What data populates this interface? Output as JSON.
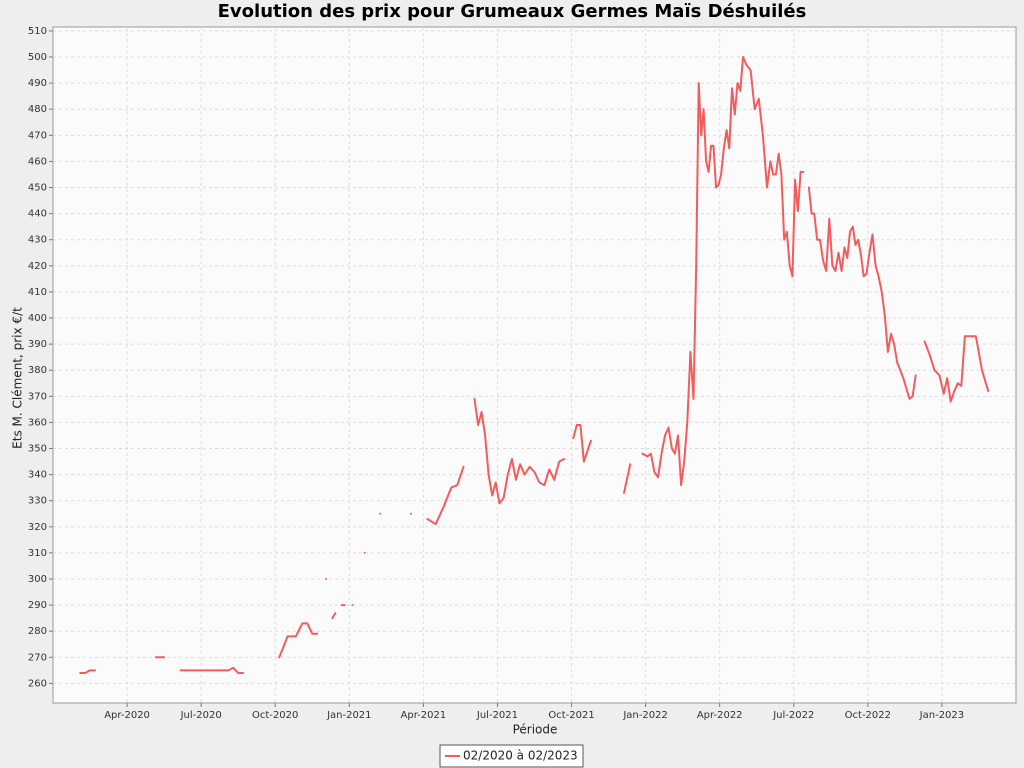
{
  "chart_data": {
    "type": "line",
    "title": "Evolution des prix pour Grumeaux Germes Maïs Déshuilés",
    "x_label": "Période",
    "y_label": "Ets M. Clément, prix €/t",
    "x": [
      "2020-02",
      "2020-02",
      "2020-02",
      "2020-02",
      "2020-02",
      "2020-05",
      "2020-05",
      "2020-05",
      "2020-06",
      "2020-06",
      "2020-06",
      "2020-07",
      "2020-07",
      "2020-07",
      "2020-07",
      "2020-08",
      "2020-08",
      "2020-08",
      "2020-08",
      "2020-08",
      "2020-10",
      "2020-10",
      "2020-10",
      "2020-11",
      "2020-11",
      "2020-11",
      "2020-11",
      "2020-11",
      "2020-12",
      "2020-12",
      "2020-12",
      "2020-12",
      "2020-12",
      "2020-12",
      "2020-12",
      "2020-12",
      "2021-01",
      "2021-01",
      "2021-01",
      "2021-01",
      "2021-02",
      "2021-02",
      "2021-03",
      "2021-03",
      "2021-03",
      "2021-04",
      "2021-04",
      "2021-04",
      "2021-05",
      "2021-05",
      "2021-05",
      "2021-05",
      "2021-06",
      "2021-06",
      "2021-06",
      "2021-06",
      "2021-06",
      "2021-06",
      "2021-06",
      "2021-07",
      "2021-07",
      "2021-07",
      "2021-07",
      "2021-07",
      "2021-07",
      "2021-08",
      "2021-08",
      "2021-08",
      "2021-08",
      "2021-08",
      "2021-09",
      "2021-09",
      "2021-09",
      "2021-09",
      "2021-09",
      "2021-10",
      "2021-10",
      "2021-10",
      "2021-10",
      "2021-10",
      "2021-10",
      "2021-10",
      "2021-12",
      "2021-12",
      "2021-12",
      "2021-12",
      "2022-01",
      "2022-01",
      "2022-01",
      "2022-01",
      "2022-01",
      "2022-01",
      "2022-01",
      "2022-02",
      "2022-02",
      "2022-02",
      "2022-02",
      "2022-02",
      "2022-02",
      "2022-02",
      "2022-02",
      "2022-03",
      "2022-03",
      "2022-03",
      "2022-03",
      "2022-03",
      "2022-03",
      "2022-03",
      "2022-03",
      "2022-03",
      "2022-03",
      "2022-04",
      "2022-04",
      "2022-04",
      "2022-04",
      "2022-04",
      "2022-04",
      "2022-04",
      "2022-04",
      "2022-04",
      "2022-05",
      "2022-05",
      "2022-05",
      "2022-05",
      "2022-05",
      "2022-05",
      "2022-06",
      "2022-06",
      "2022-06",
      "2022-06",
      "2022-06",
      "2022-06",
      "2022-06",
      "2022-06",
      "2022-06",
      "2022-07",
      "2022-07",
      "2022-07",
      "2022-07",
      "2022-07",
      "2022-07",
      "2022-07",
      "2022-07",
      "2022-07",
      "2022-08",
      "2022-08",
      "2022-08",
      "2022-08",
      "2022-08",
      "2022-08",
      "2022-08",
      "2022-08",
      "2022-09",
      "2022-09",
      "2022-09",
      "2022-09",
      "2022-09",
      "2022-09",
      "2022-09",
      "2022-09",
      "2022-09",
      "2022-10",
      "2022-10",
      "2022-10",
      "2022-10",
      "2022-10",
      "2022-10",
      "2022-10",
      "2022-10",
      "2022-11",
      "2022-11",
      "2022-11",
      "2022-11",
      "2022-11",
      "2022-11",
      "2022-11",
      "2022-11",
      "2022-12",
      "2022-12",
      "2022-12",
      "2022-12",
      "2022-12",
      "2023-01",
      "2023-01",
      "2023-01",
      "2023-01",
      "2023-01",
      "2023-01",
      "2023-01",
      "2023-02",
      "2023-02",
      "2023-02",
      "2023-02"
    ],
    "series": [
      {
        "name": "02/2020 à 02/2023",
        "color": "#f25c5c",
        "values": [
          264,
          264,
          265,
          265,
          null,
          270,
          270,
          null,
          265,
          265,
          265,
          265,
          265,
          265,
          265,
          265,
          266,
          264,
          264,
          null,
          270,
          278,
          278,
          283,
          283,
          279,
          279,
          null,
          300,
          null,
          285,
          287,
          null,
          290,
          290,
          null,
          290,
          null,
          310,
          null,
          325,
          null,
          null,
          325,
          null,
          323,
          321,
          328,
          335,
          336,
          343,
          null,
          369,
          359,
          364,
          355,
          340,
          332,
          337,
          329,
          331,
          340,
          346,
          338,
          344,
          340,
          343,
          341,
          337,
          336,
          342,
          338,
          345,
          346,
          null,
          354,
          359,
          359,
          345,
          349,
          353,
          null,
          333,
          344,
          null,
          348,
          347,
          348,
          341,
          339,
          348,
          355,
          358,
          350,
          348,
          355,
          336,
          345,
          360,
          387,
          369,
          420,
          490,
          470,
          480,
          460,
          456,
          466,
          466,
          450,
          451,
          455,
          465,
          472,
          465,
          488,
          478,
          490,
          487,
          500,
          497,
          495,
          480,
          484,
          470,
          450,
          460,
          455,
          455,
          463,
          455,
          430,
          433,
          420,
          416,
          453,
          441,
          456,
          456,
          null,
          450,
          440,
          440,
          430,
          430,
          422,
          418,
          438,
          420,
          418,
          425,
          418,
          427,
          423,
          433,
          435,
          428,
          430,
          424,
          416,
          417,
          425,
          432,
          420,
          416,
          410,
          401,
          387,
          394,
          390,
          383,
          380,
          377,
          373,
          369,
          370,
          378,
          null,
          391,
          386,
          380,
          378,
          371,
          377,
          368,
          372,
          375,
          374,
          393,
          393,
          393,
          380,
          372
        ]
      }
    ],
    "xlim": [
      "2020-01",
      "2023-04"
    ],
    "xticks": [
      {
        "value": "2020-04",
        "label": "Apr-2020"
      },
      {
        "value": "2020-07",
        "label": "Jul-2020"
      },
      {
        "value": "2020-10",
        "label": "Oct-2020"
      },
      {
        "value": "2021-01",
        "label": "Jan-2021"
      },
      {
        "value": "2021-04",
        "label": "Apr-2021"
      },
      {
        "value": "2021-07",
        "label": "Jul-2021"
      },
      {
        "value": "2021-10",
        "label": "Oct-2021"
      },
      {
        "value": "2022-01",
        "label": "Jan-2022"
      },
      {
        "value": "2022-04",
        "label": "Apr-2022"
      },
      {
        "value": "2022-07",
        "label": "Jul-2022"
      },
      {
        "value": "2022-10",
        "label": "Oct-2022"
      },
      {
        "value": "2023-01",
        "label": "Jan-2023"
      }
    ],
    "ylim": [
      252.5,
      511.5
    ],
    "yticks": [
      260,
      270,
      280,
      290,
      300,
      310,
      320,
      330,
      340,
      350,
      360,
      370,
      380,
      390,
      400,
      410,
      420,
      430,
      440,
      450,
      460,
      470,
      480,
      490,
      500,
      510
    ],
    "grid": true,
    "legend": "bottom"
  }
}
